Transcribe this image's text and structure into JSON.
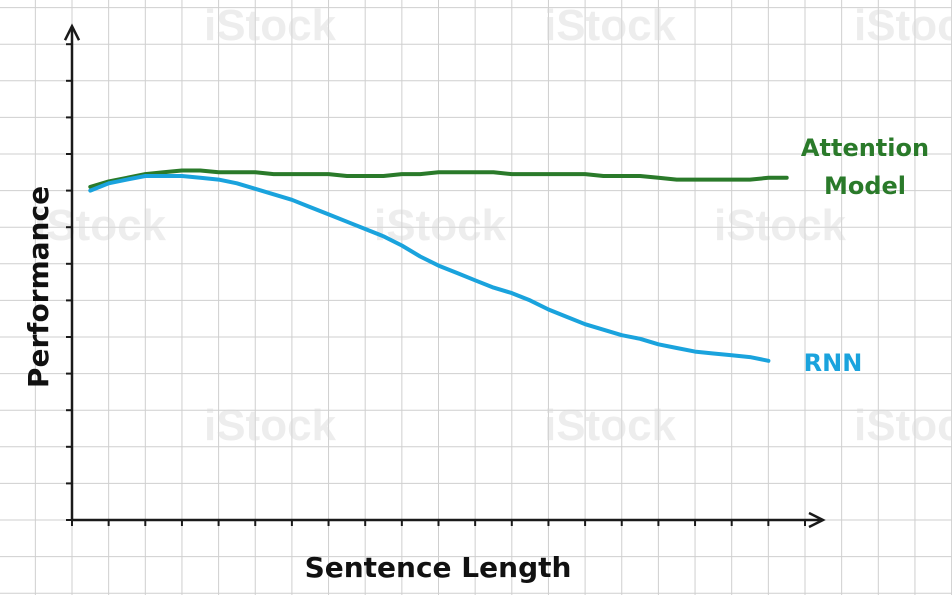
{
  "chart_data": {
    "type": "line",
    "xlabel": "Sentence Length",
    "ylabel": "Performance",
    "xlim": [
      0,
      20
    ],
    "ylim": [
      0,
      13
    ],
    "grid": true,
    "legend": "inline-right",
    "x_ticks": [
      0,
      1,
      2,
      3,
      4,
      5,
      6,
      7,
      8,
      9,
      10,
      11,
      12,
      13,
      14,
      15,
      16,
      17,
      18,
      19,
      20
    ],
    "y_ticks": [
      0,
      1,
      2,
      3,
      4,
      5,
      6,
      7,
      8,
      9,
      10,
      11,
      12,
      13
    ],
    "series": [
      {
        "name": "Attention Model",
        "color": "#2a7a2a",
        "label_lines": [
          "Attention",
          "Model"
        ],
        "x": [
          0.5,
          1.0,
          1.5,
          2.0,
          2.5,
          3.0,
          3.5,
          4.0,
          4.5,
          5.0,
          5.5,
          6.0,
          6.5,
          7.0,
          7.5,
          8.0,
          8.5,
          9.0,
          9.5,
          10.0,
          10.5,
          11.0,
          11.5,
          12.0,
          12.5,
          13.0,
          13.5,
          14.0,
          14.5,
          15.0,
          15.5,
          16.0,
          16.5,
          17.0,
          17.5,
          18.0,
          18.5,
          19.0,
          19.5
        ],
        "y": [
          9.1,
          9.25,
          9.35,
          9.45,
          9.5,
          9.55,
          9.55,
          9.5,
          9.5,
          9.5,
          9.45,
          9.45,
          9.45,
          9.45,
          9.4,
          9.4,
          9.4,
          9.45,
          9.45,
          9.5,
          9.5,
          9.5,
          9.5,
          9.45,
          9.45,
          9.45,
          9.45,
          9.45,
          9.4,
          9.4,
          9.4,
          9.35,
          9.3,
          9.3,
          9.3,
          9.3,
          9.3,
          9.35,
          9.35
        ]
      },
      {
        "name": "RNN",
        "color": "#1aa3dd",
        "label_lines": [
          "RNN"
        ],
        "x": [
          0.5,
          1.0,
          1.5,
          2.0,
          2.5,
          3.0,
          3.5,
          4.0,
          4.5,
          5.0,
          5.5,
          6.0,
          6.5,
          7.0,
          7.5,
          8.0,
          8.5,
          9.0,
          9.5,
          10.0,
          10.5,
          11.0,
          11.5,
          12.0,
          12.5,
          13.0,
          13.5,
          14.0,
          14.5,
          15.0,
          15.5,
          16.0,
          16.5,
          17.0,
          17.5,
          18.0,
          18.5,
          19.0
        ],
        "y": [
          9.0,
          9.2,
          9.3,
          9.4,
          9.4,
          9.4,
          9.35,
          9.3,
          9.2,
          9.05,
          8.9,
          8.75,
          8.55,
          8.35,
          8.15,
          7.95,
          7.75,
          7.5,
          7.2,
          6.95,
          6.75,
          6.55,
          6.35,
          6.2,
          6.0,
          5.75,
          5.55,
          5.35,
          5.2,
          5.05,
          4.95,
          4.8,
          4.7,
          4.6,
          4.55,
          4.5,
          4.45,
          4.35
        ]
      }
    ]
  }
}
